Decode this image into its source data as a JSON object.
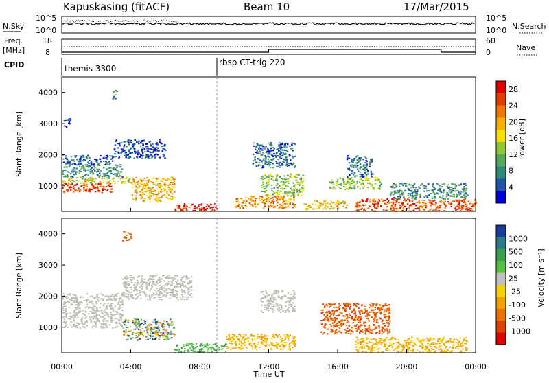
{
  "header": {
    "station": "Kapuskasing (fitACF)",
    "beam": "Beam 10",
    "date": "17/Mar/2015"
  },
  "strip_labels": {
    "nsky": "N.Sky",
    "nsky_hi": "10^5",
    "nsky_lo": "10^0",
    "nsearch": "N.Search",
    "nsearch_hi": "10^5",
    "nsearch_lo": "10^0",
    "freq": "Freq.",
    "freq_unit": "[MHz]",
    "freq_hi": "18",
    "freq_lo": "8",
    "nave": "Nave",
    "nave_hi": "60",
    "nave_lo": "0",
    "cpid": "CPID"
  },
  "cpid_segments": [
    {
      "label": "themis 3300",
      "start": "00:00"
    },
    {
      "label": "rbsp CT-trig 220",
      "start": "09:00"
    }
  ],
  "x_axis": {
    "label": "Time UT",
    "ticks": [
      "00:00",
      "04:00",
      "08:00",
      "12:00",
      "16:00",
      "20:00",
      "00:00"
    ],
    "range_hours": [
      0,
      24
    ]
  },
  "colors": {
    "gray_scatter": "#bdbdb5",
    "axis": "#000000"
  },
  "chart_data": [
    {
      "type": "heatmap",
      "ylabel": "Slant Range [km]",
      "yticks": [
        "1000",
        "2000",
        "3000",
        "4000"
      ],
      "ylim": [
        180,
        4500
      ],
      "colorbar": {
        "label": "Power [dB]",
        "ticks": [
          "4",
          "8",
          "12",
          "16",
          "20",
          "24",
          "28"
        ],
        "range": [
          0,
          30
        ],
        "colors": [
          "#0000dd",
          "#1e55aa",
          "#2f8a7a",
          "#55a860",
          "#8ec834",
          "#f5e000",
          "#f5b000",
          "#f07800",
          "#e63c00",
          "#e00000"
        ]
      },
      "features": [
        {
          "t0": 0.0,
          "t1": 3.0,
          "r0": 800,
          "r1": 1100,
          "v": 26
        },
        {
          "t0": 0.0,
          "t1": 4.0,
          "r0": 1100,
          "r1": 1300,
          "v": 15
        },
        {
          "t0": 0.0,
          "t1": 3.5,
          "r0": 1300,
          "r1": 1700,
          "v": 8
        },
        {
          "t0": 0.0,
          "t1": 3.0,
          "r0": 1700,
          "r1": 2000,
          "v": 5
        },
        {
          "t0": 3.0,
          "t1": 6.0,
          "r0": 1900,
          "r1": 2500,
          "v": 4
        },
        {
          "t0": 4.0,
          "t1": 6.5,
          "r0": 500,
          "r1": 1300,
          "v": 19
        },
        {
          "t0": 6.5,
          "t1": 9.0,
          "r0": 200,
          "r1": 450,
          "v": 27
        },
        {
          "t0": 0.1,
          "t1": 0.5,
          "r0": 2900,
          "r1": 3200,
          "v": 5
        },
        {
          "t0": 2.9,
          "t1": 3.2,
          "r0": 3800,
          "r1": 4100,
          "v": 9
        },
        {
          "t0": 10.0,
          "t1": 13.5,
          "r0": 300,
          "r1": 700,
          "v": 21
        },
        {
          "t0": 11.0,
          "t1": 13.5,
          "r0": 1600,
          "r1": 2400,
          "v": 6
        },
        {
          "t0": 11.5,
          "t1": 14.0,
          "r0": 700,
          "r1": 1400,
          "v": 13
        },
        {
          "t0": 15.5,
          "t1": 18.5,
          "r0": 900,
          "r1": 1300,
          "v": 13
        },
        {
          "t0": 16.5,
          "t1": 18.0,
          "r0": 1300,
          "r1": 2000,
          "v": 7
        },
        {
          "t0": 17.0,
          "t1": 24.0,
          "r0": 200,
          "r1": 600,
          "v": 25
        },
        {
          "t0": 14.0,
          "t1": 16.5,
          "r0": 250,
          "r1": 550,
          "v": 18
        },
        {
          "t0": 19.0,
          "t1": 23.5,
          "r0": 600,
          "r1": 1100,
          "v": 8
        }
      ]
    },
    {
      "type": "heatmap",
      "ylabel": "Slant Range [km]",
      "yticks": [
        "1000",
        "2000",
        "3000",
        "4000"
      ],
      "ylim": [
        180,
        4500
      ],
      "colorbar": {
        "label": "Velocity [m s⁻¹]",
        "ticks": [
          "1000",
          "500",
          "100",
          "25",
          "-25",
          "-100",
          "-500",
          "-1000"
        ],
        "colors": [
          "#1a3c9c",
          "#2a7a8a",
          "#3aa050",
          "#58c040",
          "#c0c0b8",
          "#f5d000",
          "#f5a000",
          "#f07000",
          "#e04000",
          "#e00000"
        ]
      },
      "features": [
        {
          "t0": 0.0,
          "t1": 3.5,
          "r0": 1000,
          "r1": 2100,
          "v": "ground"
        },
        {
          "t0": 3.5,
          "t1": 7.5,
          "r0": 1900,
          "r1": 2700,
          "v": "ground"
        },
        {
          "t0": 3.5,
          "t1": 6.5,
          "r0": 600,
          "r1": 1300,
          "v": "mixed"
        },
        {
          "t0": 6.5,
          "t1": 9.5,
          "r0": 200,
          "r1": 500,
          "v": "positive"
        },
        {
          "t0": 9.5,
          "t1": 13.5,
          "r0": 300,
          "r1": 800,
          "v": "negative"
        },
        {
          "t0": 11.5,
          "t1": 13.5,
          "r0": 1500,
          "r1": 2200,
          "v": "ground"
        },
        {
          "t0": 15.0,
          "t1": 19.0,
          "r0": 800,
          "r1": 1800,
          "v": "strong_negative"
        },
        {
          "t0": 17.0,
          "t1": 23.5,
          "r0": 200,
          "r1": 700,
          "v": "negative"
        },
        {
          "t0": 3.5,
          "t1": 4.0,
          "r0": 3800,
          "r1": 4100,
          "v": "strong_negative"
        }
      ]
    }
  ]
}
